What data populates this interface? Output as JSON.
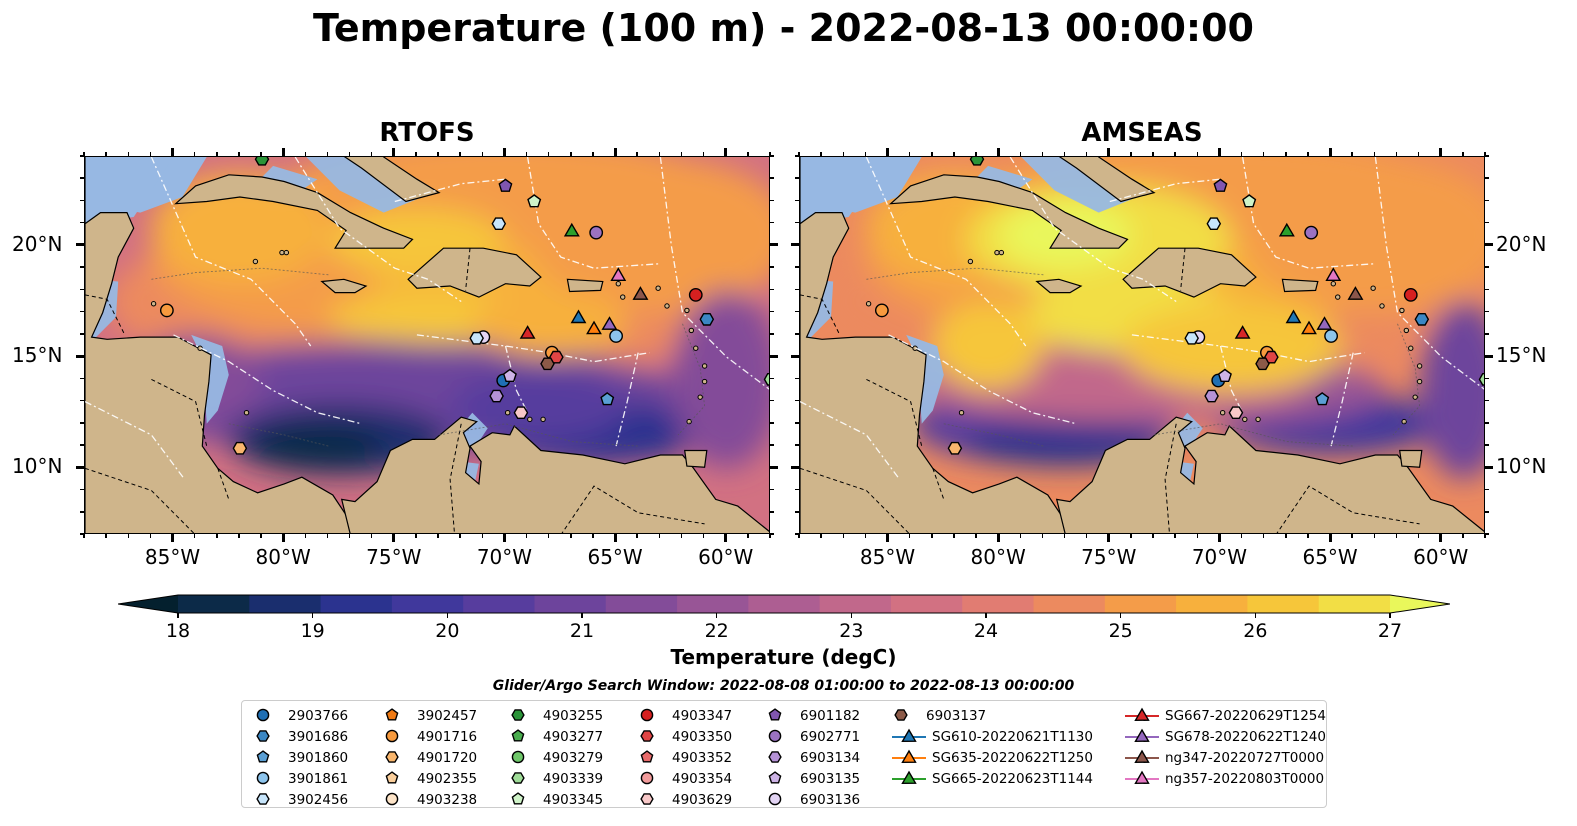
{
  "title": "Temperature (100 m) - 2022-08-13 00:00:00",
  "panels": [
    {
      "title": "RTOFS"
    },
    {
      "title": "AMSEAS"
    }
  ],
  "x_ticks": [
    "85°W",
    "80°W",
    "75°W",
    "70°W",
    "65°W",
    "60°W"
  ],
  "y_ticks": [
    "20°N",
    "15°N",
    "10°N"
  ],
  "colorbar": {
    "label": "Temperature (degC)",
    "ticks": [
      "18",
      "19",
      "20",
      "21",
      "22",
      "23",
      "24",
      "25",
      "26",
      "27"
    ],
    "colors": [
      "#04202e",
      "#0c2a48",
      "#1a2e6e",
      "#2b338f",
      "#40389c",
      "#573d9e",
      "#6d449c",
      "#834c99",
      "#985596",
      "#ad5e92",
      "#c1688b",
      "#d27182",
      "#e17c72",
      "#ec8a5f",
      "#f49c49",
      "#f7b03d",
      "#f6c63a",
      "#f2de45",
      "#e9f75b"
    ]
  },
  "search_window": "Glider/Argo Search Window: 2022-08-08 01:00:00 to 2022-08-13 00:00:00",
  "legend": [
    {
      "label": "2903766",
      "marker": "circle",
      "color": "#1f6fb4"
    },
    {
      "label": "3901686",
      "marker": "hexagon",
      "color": "#3b87c4"
    },
    {
      "label": "3901860",
      "marker": "pentagon",
      "color": "#5a9fd4"
    },
    {
      "label": "3901861",
      "marker": "circle",
      "color": "#8dc4ec"
    },
    {
      "label": "3902456",
      "marker": "hexagon",
      "color": "#c7e5fb"
    },
    {
      "label": "3902457",
      "marker": "pentagon",
      "color": "#f07a13"
    },
    {
      "label": "4901716",
      "marker": "circle",
      "color": "#f79a3e"
    },
    {
      "label": "4901720",
      "marker": "hexagon",
      "color": "#f9b66d"
    },
    {
      "label": "4902355",
      "marker": "pentagon",
      "color": "#fbcf9c"
    },
    {
      "label": "4903238",
      "marker": "circle",
      "color": "#fde4c8"
    },
    {
      "label": "4903255",
      "marker": "hexagon",
      "color": "#2a9438"
    },
    {
      "label": "4903277",
      "marker": "pentagon",
      "color": "#49ad4e"
    },
    {
      "label": "4903279",
      "marker": "circle",
      "color": "#6fc76a"
    },
    {
      "label": "4903339",
      "marker": "hexagon",
      "color": "#9fdc98"
    },
    {
      "label": "4903345",
      "marker": "pentagon",
      "color": "#cff3c8"
    },
    {
      "label": "4903347",
      "marker": "circle",
      "color": "#d62020"
    },
    {
      "label": "4903350",
      "marker": "hexagon",
      "color": "#e04545"
    },
    {
      "label": "4903352",
      "marker": "pentagon",
      "color": "#e86b6b"
    },
    {
      "label": "4903354",
      "marker": "circle",
      "color": "#f29b9b"
    },
    {
      "label": "4903629",
      "marker": "hexagon",
      "color": "#f8c8c8"
    },
    {
      "label": "6901182",
      "marker": "pentagon",
      "color": "#8056b0"
    },
    {
      "label": "6902771",
      "marker": "circle",
      "color": "#9b72c2"
    },
    {
      "label": "6903134",
      "marker": "hexagon",
      "color": "#b592d6"
    },
    {
      "label": "6903135",
      "marker": "pentagon",
      "color": "#cdb3e6"
    },
    {
      "label": "6903136",
      "marker": "circle",
      "color": "#e3d4f4"
    },
    {
      "label": "6903137",
      "marker": "hexagon",
      "color": "#8c5a48"
    },
    {
      "label": "SG610-20220621T1130",
      "marker": "triangle",
      "color": "#1f77b4"
    },
    {
      "label": "SG635-20220622T1250",
      "marker": "triangle",
      "color": "#ff7f0e"
    },
    {
      "label": "SG665-20220623T1144",
      "marker": "triangle",
      "color": "#2ca02c"
    },
    {
      "label": "SG667-20220629T1254",
      "marker": "triangle",
      "color": "#d62728"
    },
    {
      "label": "SG678-20220622T1240",
      "marker": "triangle",
      "color": "#9467bd"
    },
    {
      "label": "ng347-20220727T0000",
      "marker": "triangle",
      "color": "#8c564b"
    },
    {
      "label": "ng357-20220803T0000",
      "marker": "triangle",
      "color": "#e377c2"
    }
  ],
  "map": {
    "lon_range": [
      -89,
      -58
    ],
    "lat_range": [
      7,
      24
    ],
    "land_color": "#cfb58b",
    "markers": [
      {
        "lon": -85.3,
        "lat": 17.1,
        "marker": "circle",
        "color": "#f79a3e"
      },
      {
        "lon": -82.0,
        "lat": 10.9,
        "marker": "hexagon",
        "color": "#f9b66d"
      },
      {
        "lon": -71.0,
        "lat": 15.9,
        "marker": "circle",
        "color": "#e3d4f4"
      },
      {
        "lon": -71.3,
        "lat": 15.85,
        "marker": "hexagon",
        "color": "#c7e5fb"
      },
      {
        "lon": -70.0,
        "lat": 22.7,
        "marker": "pentagon",
        "color": "#8056b0"
      },
      {
        "lon": -68.7,
        "lat": 22.0,
        "marker": "pentagon",
        "color": "#cff3c8"
      },
      {
        "lon": -70.3,
        "lat": 21.0,
        "marker": "hexagon",
        "color": "#c7e5fb"
      },
      {
        "lon": -67.0,
        "lat": 20.7,
        "marker": "triangle",
        "color": "#2ca02c"
      },
      {
        "lon": -65.9,
        "lat": 20.6,
        "marker": "circle",
        "color": "#9b72c2"
      },
      {
        "lon": -64.9,
        "lat": 18.7,
        "marker": "triangle",
        "color": "#e377c2"
      },
      {
        "lon": -63.9,
        "lat": 17.85,
        "marker": "triangle",
        "color": "#8c564b"
      },
      {
        "lon": -61.4,
        "lat": 17.8,
        "marker": "circle",
        "color": "#d62020"
      },
      {
        "lon": -60.9,
        "lat": 16.7,
        "marker": "hexagon",
        "color": "#3b87c4"
      },
      {
        "lon": -69.0,
        "lat": 16.1,
        "marker": "triangle",
        "color": "#d62728"
      },
      {
        "lon": -66.7,
        "lat": 16.8,
        "marker": "triangle",
        "color": "#1f77b4"
      },
      {
        "lon": -66.0,
        "lat": 16.3,
        "marker": "triangle",
        "color": "#ff7f0e"
      },
      {
        "lon": -65.3,
        "lat": 16.5,
        "marker": "triangle",
        "color": "#9467bd"
      },
      {
        "lon": -65.0,
        "lat": 15.95,
        "marker": "circle",
        "color": "#8dc4ec"
      },
      {
        "lon": -67.9,
        "lat": 15.2,
        "marker": "circle",
        "color": "#f79a3e"
      },
      {
        "lon": -67.7,
        "lat": 15.0,
        "marker": "hexagon",
        "color": "#e04545"
      },
      {
        "lon": -68.1,
        "lat": 14.7,
        "marker": "hexagon",
        "color": "#8c5a48"
      },
      {
        "lon": -70.1,
        "lat": 13.95,
        "marker": "circle",
        "color": "#1f6fb4"
      },
      {
        "lon": -69.8,
        "lat": 14.15,
        "marker": "pentagon",
        "color": "#cdb3e6"
      },
      {
        "lon": -70.4,
        "lat": 13.25,
        "marker": "hexagon",
        "color": "#b592d6"
      },
      {
        "lon": -69.3,
        "lat": 12.5,
        "marker": "hexagon",
        "color": "#f8c8c8"
      },
      {
        "lon": -65.4,
        "lat": 13.1,
        "marker": "pentagon",
        "color": "#5a9fd4"
      },
      {
        "lon": -81.0,
        "lat": 23.9,
        "marker": "hexagon",
        "color": "#2a9438"
      },
      {
        "lon": -58.0,
        "lat": 14.0,
        "marker": "hexagon",
        "color": "#9fdc98"
      }
    ]
  }
}
